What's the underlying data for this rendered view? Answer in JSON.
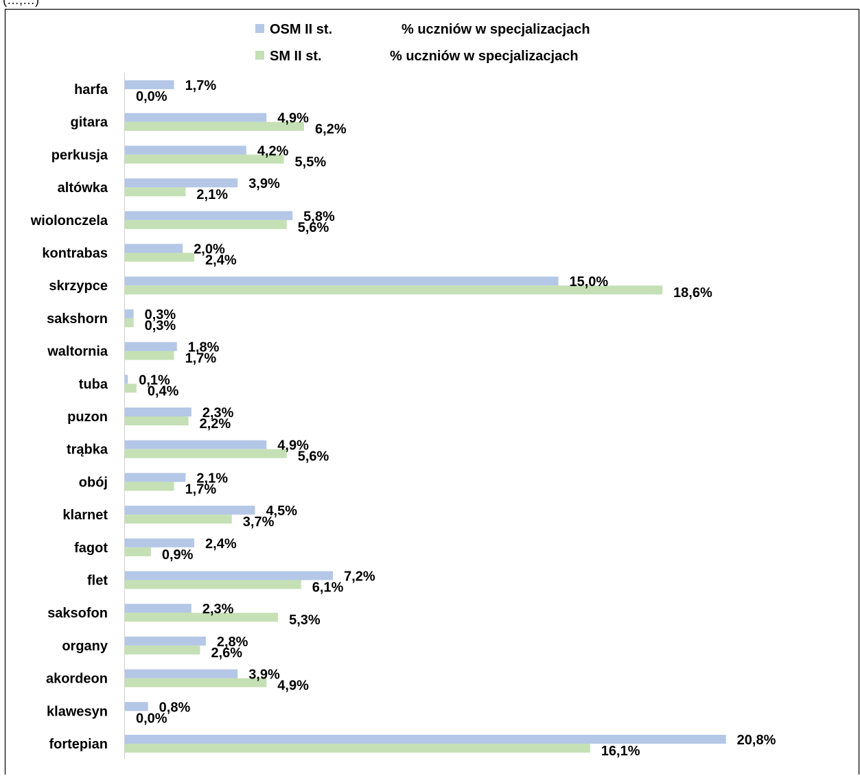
{
  "top_fragment": "(…,…)",
  "chart_data": {
    "type": "bar",
    "orientation": "horizontal",
    "grouped": true,
    "title": "",
    "xlabel": "",
    "ylabel": "",
    "xlim": [
      0,
      21
    ],
    "grid": false,
    "legend_position": "top",
    "categories": [
      "harfa",
      "gitara",
      "perkusja",
      "altówka",
      "wiolonczela",
      "kontrabas",
      "skrzypce",
      "sakshorn",
      "waltornia",
      "tuba",
      "puzon",
      "trąbka",
      "obój",
      "klarnet",
      "fagot",
      "flet",
      "saksofon",
      "organy",
      "akordeon",
      "klawesyn",
      "fortepian"
    ],
    "series": [
      {
        "name": "OSM II st.",
        "legend_label": "% uczniów w specjalizacjach",
        "color": "#B4C7E7",
        "values": [
          1.7,
          4.9,
          4.2,
          3.9,
          5.8,
          2.0,
          15.0,
          0.3,
          1.8,
          0.1,
          2.3,
          4.9,
          2.1,
          4.5,
          2.4,
          7.2,
          2.3,
          2.8,
          3.9,
          0.8,
          20.8
        ],
        "labels": [
          "1,7%",
          "4,9%",
          "4,2%",
          "3,9%",
          "5,8%",
          "2,0%",
          "15,0%",
          "0,3%",
          "1,8%",
          "0,1%",
          "2,3%",
          "4,9%",
          "2,1%",
          "4,5%",
          "2,4%",
          "7,2%",
          "2,3%",
          "2,8%",
          "3,9%",
          "0,8%",
          "20,8%"
        ]
      },
      {
        "name": "SM II st.",
        "legend_label": "% uczniów w specjalizacjach",
        "color": "#C5E0B4",
        "values": [
          0.0,
          6.2,
          5.5,
          2.1,
          5.6,
          2.4,
          18.6,
          0.3,
          1.7,
          0.4,
          2.2,
          5.6,
          1.7,
          3.7,
          0.9,
          6.1,
          5.3,
          2.6,
          4.9,
          0.0,
          16.1
        ],
        "labels": [
          "0,0%",
          "6,2%",
          "5,5%",
          "2,1%",
          "5,6%",
          "2,4%",
          "18,6%",
          "0,3%",
          "1,7%",
          "0,4%",
          "2,2%",
          "5,6%",
          "1,7%",
          "3,7%",
          "0,9%",
          "6,1%",
          "5,3%",
          "2,6%",
          "4,9%",
          "0,0%",
          "16,1%"
        ]
      }
    ]
  }
}
